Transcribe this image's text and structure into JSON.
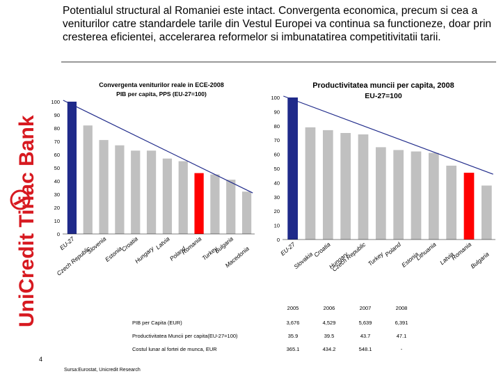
{
  "brand": {
    "name": "UniCredit Tiriac Bank",
    "color": "#d71920"
  },
  "headline": "Potentialul structural al Romaniei este intact. Convergenta economica, precum si cea a veniturilor catre standardele tarile din Vestul Europei va continua sa functioneze, doar prin cresterea eficientei, accelerarea reformelor si imbunatatirea competitivitatii tarii.",
  "chart_data": [
    {
      "type": "bar",
      "title": "Convergenta veniturilor reale in ECE-2008",
      "subtitle": "PIB per capita, PPS (EU-27=100)",
      "categories": [
        "EU-27",
        "Czech Republic",
        "Slovenia",
        "Estonia",
        "Croatia",
        "Hungary",
        "Latvia",
        "Poland",
        "Romania",
        "Turkey",
        "Bulgaria",
        "Macedonia"
      ],
      "values": [
        100,
        82,
        71,
        67,
        63,
        63,
        57,
        55,
        46,
        45,
        41,
        32
      ],
      "yticks": [
        "100",
        "90",
        "80",
        "70",
        "60",
        "50",
        "40",
        "30",
        "20",
        "10",
        "0"
      ],
      "ylim": [
        0,
        100
      ],
      "bar_colors": [
        "#1f2a8a",
        "#c0c0c0",
        "#c0c0c0",
        "#c0c0c0",
        "#c0c0c0",
        "#c0c0c0",
        "#c0c0c0",
        "#c0c0c0",
        "#ff0000",
        "#c0c0c0",
        "#c0c0c0",
        "#c0c0c0"
      ],
      "trend": {
        "from": 100,
        "to": 31
      }
    },
    {
      "type": "bar",
      "title": "Productivitatea muncii per capita, 2008",
      "subtitle": "EU-27=100",
      "categories": [
        "EU-27",
        "Slovakia",
        "Croatia",
        "Hungary",
        "Czech Republic",
        "Turkey",
        "Poland",
        "Estonia",
        "Lithuania",
        "Latvia",
        "Romania",
        "Bulgaria"
      ],
      "values": [
        100,
        79,
        77,
        75,
        74,
        65,
        63,
        62,
        61,
        52,
        47,
        38
      ],
      "yticks": [
        "100",
        "90",
        "80",
        "70",
        "60",
        "50",
        "40",
        "30",
        "20",
        "10",
        "0"
      ],
      "ylim": [
        0,
        100
      ],
      "bar_colors": [
        "#1f2a8a",
        "#c0c0c0",
        "#c0c0c0",
        "#c0c0c0",
        "#c0c0c0",
        "#c0c0c0",
        "#c0c0c0",
        "#c0c0c0",
        "#c0c0c0",
        "#c0c0c0",
        "#ff0000",
        "#c0c0c0"
      ],
      "trend": {
        "from": 100,
        "to": 46
      }
    },
    {
      "type": "table",
      "columns": [
        "",
        "2005",
        "2006",
        "2007",
        "2008"
      ],
      "rows": [
        [
          "PIB per Capita (EUR)",
          "3,676",
          "4,529",
          "5,639",
          "6,391"
        ],
        [
          "Productivitatea Muncii per capita(EU-27=100)",
          "35.9",
          "39.5",
          "43.7",
          "47.1"
        ],
        [
          "Costul lunar al fortei de munca, EUR",
          "365.1",
          "434.2",
          "548.1",
          "-"
        ]
      ]
    }
  ],
  "page_number": "4",
  "source": "Sursa:Eurostat, Unicredit Research"
}
